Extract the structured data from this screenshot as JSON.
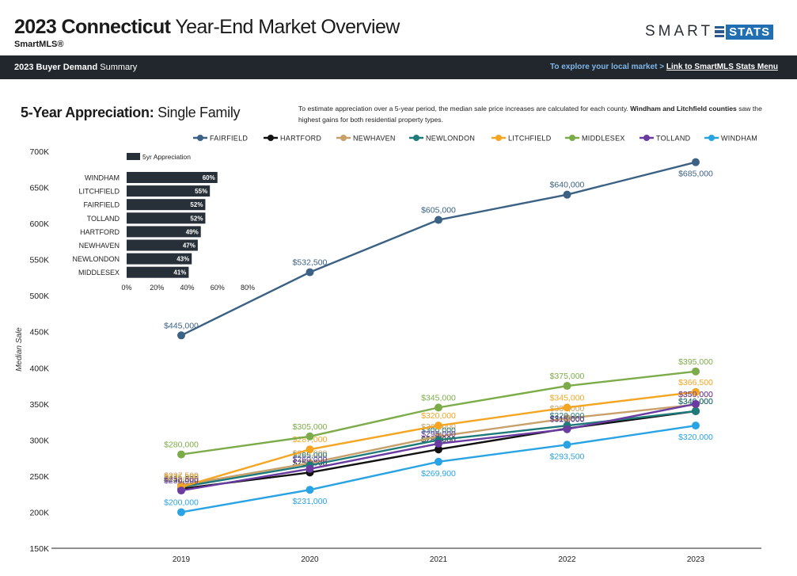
{
  "header": {
    "title_bold": "2023 Connecticut",
    "title_rest": "Year-End Market Overview",
    "subtitle": "SmartMLS®",
    "logo_smart": "SMART",
    "logo_stats": "STATS"
  },
  "navbar": {
    "left_bold": "2023 Buyer Demand",
    "left_rest": "Summary",
    "right_text": "To explore your local market >",
    "right_link": "Link to SmartMLS Stats Menu"
  },
  "section": {
    "title_bold": "5-Year Appreciation:",
    "title_rest": "Single Family",
    "desc_text": "To estimate appreciation over a 5-year period, the median sale price increases are calculated for each county.",
    "desc_bold": "Windham and Litchfield counties",
    "desc_end": "saw the highest gains for both residential property types."
  },
  "colors": {
    "FAIRFIELD": "#3b6184",
    "HARTFORD": "#111111",
    "NEWHAVEN": "#c8a06a",
    "NEWLONDON": "#1f7a7a",
    "LITCHFIELD": "#f4a522",
    "MIDDLESEX": "#7cac4a",
    "TOLLAND": "#6a3ba0",
    "WINDHAM": "#29a3e3",
    "inset_bar": "#273038"
  },
  "chart_data": [
    {
      "type": "line",
      "title": "5-Year Appreciation: Single Family",
      "xlabel": "",
      "ylabel": "Median Sale",
      "ylim": [
        150000,
        700000
      ],
      "y_ticks": [
        "150K",
        "200K",
        "250K",
        "300K",
        "350K",
        "400K",
        "450K",
        "500K",
        "550K",
        "600K",
        "650K",
        "700K"
      ],
      "categories": [
        "2019",
        "2020",
        "2021",
        "2022",
        "2023"
      ],
      "legend_position": "top",
      "series": [
        {
          "name": "FAIRFIELD",
          "values": [
            445000,
            532500,
            605000,
            640000,
            685000
          ],
          "labels": [
            "$445,000",
            "$532,500",
            "$605,000",
            "$640,000",
            "$685,000"
          ]
        },
        {
          "name": "HARTFORD",
          "values": [
            232500,
            255000,
            287000,
            316000,
            340000
          ],
          "labels": [
            "$232,500",
            "$255,000",
            "$287,000",
            "$316,000",
            "$340,000"
          ]
        },
        {
          "name": "NEWHAVEN",
          "values": [
            237500,
            268000,
            305000,
            330000,
            349000
          ],
          "labels": [
            "$237,500",
            "$268,000",
            "$305,000",
            "$330,000",
            "$349,000"
          ]
        },
        {
          "name": "NEWLONDON",
          "values": [
            235000,
            265000,
            300000,
            320000,
            340000
          ],
          "labels": [
            "$235,000",
            "$265,000",
            "$300,000",
            "$320,000",
            "$340,000"
          ]
        },
        {
          "name": "LITCHFIELD",
          "values": [
            235000,
            287000,
            320000,
            345000,
            366500
          ],
          "labels": [
            "$235,000",
            "$287,000",
            "$320,000",
            "$345,000",
            "$366,500"
          ]
        },
        {
          "name": "MIDDLESEX",
          "values": [
            280000,
            305000,
            345000,
            375000,
            395000
          ],
          "labels": [
            "$280,000",
            "$305,000",
            "$345,000",
            "$375,000",
            "$395,000"
          ]
        },
        {
          "name": "TOLLAND",
          "values": [
            230000,
            260000,
            295000,
            315000,
            350000
          ],
          "labels": [
            "$230,000",
            "$260,000",
            "$295,000",
            "$315,000",
            "$350,000"
          ]
        },
        {
          "name": "WINDHAM",
          "values": [
            200000,
            231000,
            269900,
            293500,
            320000
          ],
          "labels": [
            "$200,000",
            "$231,000",
            "$269,900",
            "$293,500",
            "$320,000"
          ]
        }
      ]
    },
    {
      "type": "bar",
      "orientation": "horizontal",
      "legend": "5yr Appreciation",
      "categories": [
        "WINDHAM",
        "LITCHFIELD",
        "FAIRFIELD",
        "TOLLAND",
        "HARTFORD",
        "NEWHAVEN",
        "NEWLONDON",
        "MIDDLESEX"
      ],
      "values": [
        60,
        55,
        52,
        52,
        49,
        47,
        43,
        41
      ],
      "labels": [
        "60%",
        "55%",
        "52%",
        "52%",
        "49%",
        "47%",
        "43%",
        "41%"
      ],
      "x_ticks": [
        "0%",
        "20%",
        "40%",
        "60%",
        "80%"
      ],
      "xlim": [
        0,
        80
      ]
    }
  ]
}
